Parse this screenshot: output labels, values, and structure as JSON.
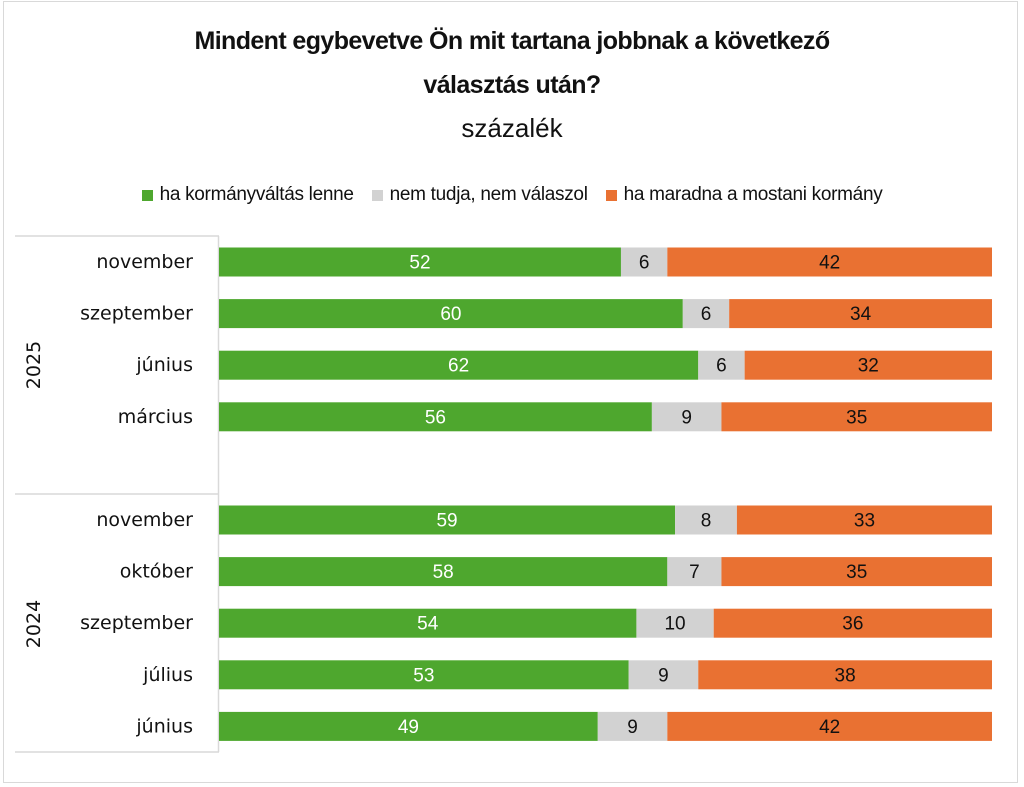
{
  "chart_data": {
    "type": "bar",
    "orientation": "horizontal",
    "stacked": "100%",
    "title": "Mindent egybevetve Ön mit tartana jobbnak a következő",
    "title_line2": "választás után?",
    "subtitle": "százalék",
    "xlabel": "",
    "ylabel": "",
    "xlim": [
      0,
      100
    ],
    "grid": false,
    "legend_position": "top",
    "groups": [
      {
        "label": "2025",
        "categories": [
          "november",
          "szeptember",
          "június",
          "március"
        ]
      },
      {
        "label": "2024",
        "categories": [
          "november",
          "október",
          "szeptember",
          "július",
          "június"
        ]
      }
    ],
    "categories": [
      "2025 november",
      "2025 szeptember",
      "2025 június",
      "2025 március",
      "2024 november",
      "2024 október",
      "2024 szeptember",
      "2024 július",
      "2024 június"
    ],
    "series": [
      {
        "name": "ha kormányváltás lenne",
        "color": "#4ea72e",
        "label_color": "#ffffff",
        "values": [
          52,
          60,
          62,
          56,
          59,
          58,
          54,
          53,
          49
        ]
      },
      {
        "name": "nem tudja, nem válaszol",
        "color": "#d2d2d2",
        "label_color": "#111111",
        "values": [
          6,
          6,
          6,
          9,
          8,
          7,
          10,
          9,
          9
        ]
      },
      {
        "name": "ha maradna a mostani kormány",
        "color": "#e97132",
        "label_color": "#111111",
        "values": [
          42,
          34,
          32,
          35,
          33,
          35,
          36,
          38,
          42
        ]
      }
    ]
  }
}
